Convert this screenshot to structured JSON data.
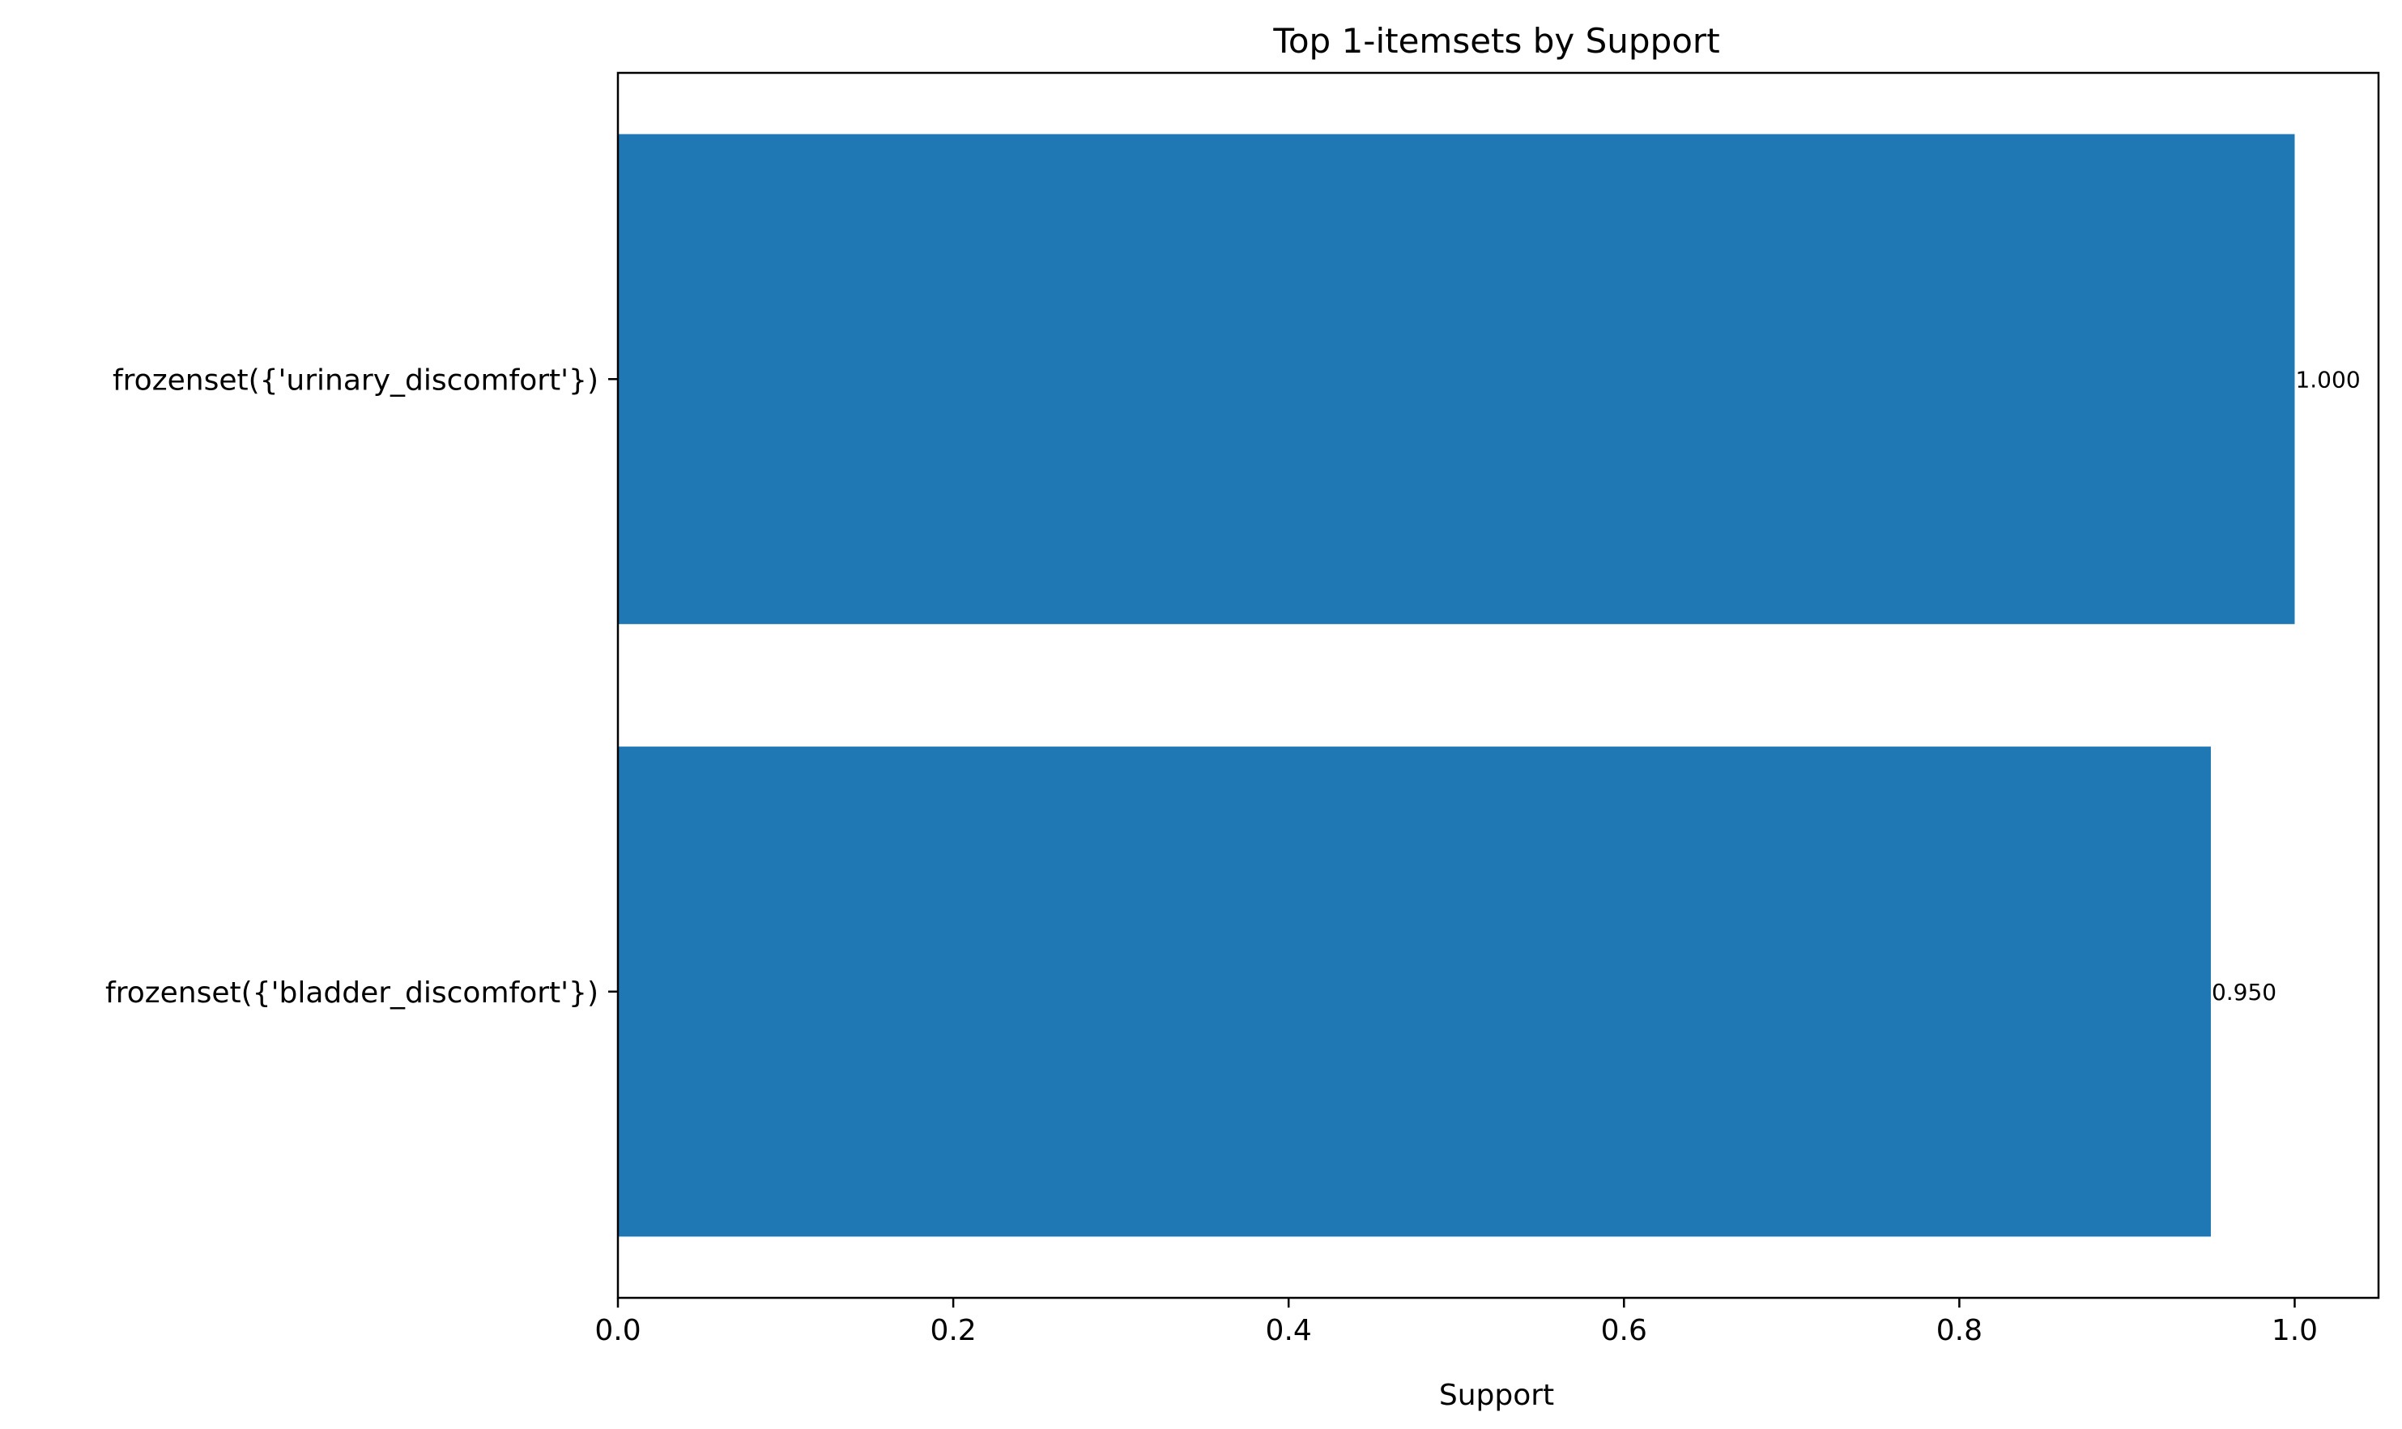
{
  "chart_data": {
    "type": "bar",
    "orientation": "horizontal",
    "title": "Top 1-itemsets by Support",
    "xlabel": "Support",
    "ylabel": "",
    "categories": [
      "frozenset({'urinary_discomfort'})",
      "frozenset({'bladder_discomfort'})"
    ],
    "values": [
      1.0,
      0.95
    ],
    "value_labels": [
      "1.000",
      "0.950"
    ],
    "xlim": [
      0.0,
      1.05
    ],
    "xticks": [
      0.0,
      0.2,
      0.4,
      0.6,
      0.8,
      1.0
    ],
    "xtick_labels": [
      "0.0",
      "0.2",
      "0.4",
      "0.6",
      "0.8",
      "1.0"
    ],
    "grid": false,
    "legend": "none",
    "bar_color": "#1f77b4"
  }
}
